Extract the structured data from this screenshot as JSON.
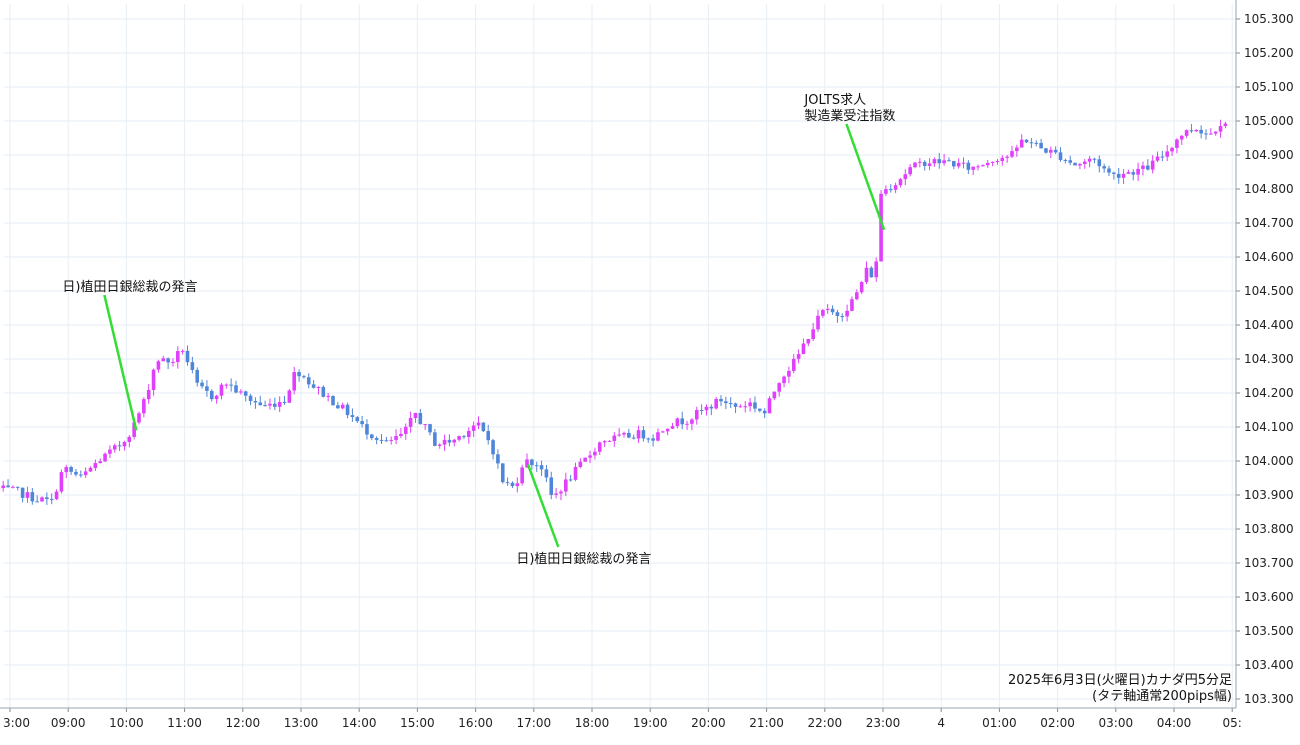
{
  "chart_data": {
    "type": "candlestick",
    "caption": [
      "2025年6月3日(火曜日)カナダ円5分足",
      "(タテ軸通常200pips幅)"
    ],
    "x_ticks": [
      "3:00",
      "09:00",
      "10:00",
      "11:00",
      "12:00",
      "13:00",
      "14:00",
      "15:00",
      "16:00",
      "17:00",
      "18:00",
      "19:00",
      "20:00",
      "21:00",
      "22:00",
      "23:00",
      "4",
      "01:00",
      "02:00",
      "03:00",
      "04:00",
      "05:"
    ],
    "y_ticks": [
      "105.300",
      "105.200",
      "105.100",
      "105.000",
      "104.900",
      "104.800",
      "104.700",
      "104.600",
      "104.500",
      "104.400",
      "104.300",
      "104.200",
      "104.100",
      "104.000",
      "103.900",
      "103.800",
      "103.700",
      "103.600",
      "103.500",
      "103.400",
      "103.300"
    ],
    "ylim": [
      103.28,
      105.34
    ],
    "grid": true,
    "colors": {
      "up": "#e040fb",
      "down": "#4f86d9",
      "annotation_line": "#33dd33",
      "grid": "#e6eef5"
    },
    "annotations": [
      {
        "lines": [
          "日)植田日銀総裁の発言"
        ],
        "hour": 10.17,
        "price": 104.09,
        "text_hour": 8.9,
        "text_price": 104.5
      },
      {
        "lines": [
          "日)植田日銀総裁の発言"
        ],
        "hour": 16.9,
        "price": 103.99,
        "text_hour": 16.7,
        "text_price": 103.7
      },
      {
        "lines": [
          "JOLTS求人",
          "製造業受注指数"
        ],
        "hour": 23.02,
        "price": 104.68,
        "text_hour": 21.65,
        "text_price": 105.05
      }
    ],
    "anchors": [
      [
        7.8,
        103.92
      ],
      [
        8.2,
        103.91
      ],
      [
        8.5,
        103.89
      ],
      [
        8.8,
        103.88
      ],
      [
        9.0,
        103.98
      ],
      [
        9.3,
        103.95
      ],
      [
        9.6,
        104.0
      ],
      [
        10.0,
        104.05
      ],
      [
        10.2,
        104.1
      ],
      [
        10.4,
        104.18
      ],
      [
        10.6,
        104.3
      ],
      [
        10.85,
        104.29
      ],
      [
        11.05,
        104.33
      ],
      [
        11.3,
        104.22
      ],
      [
        11.55,
        104.19
      ],
      [
        11.8,
        104.23
      ],
      [
        12.1,
        104.19
      ],
      [
        12.45,
        104.16
      ],
      [
        12.8,
        104.18
      ],
      [
        13.0,
        104.27
      ],
      [
        13.3,
        104.22
      ],
      [
        13.6,
        104.18
      ],
      [
        13.9,
        104.14
      ],
      [
        14.2,
        104.09
      ],
      [
        14.55,
        104.05
      ],
      [
        14.85,
        104.08
      ],
      [
        15.05,
        104.14
      ],
      [
        15.4,
        104.05
      ],
      [
        15.7,
        104.06
      ],
      [
        16.1,
        104.11
      ],
      [
        16.35,
        104.05
      ],
      [
        16.55,
        103.94
      ],
      [
        16.75,
        103.92
      ],
      [
        16.9,
        104.0
      ],
      [
        17.2,
        103.99
      ],
      [
        17.4,
        103.89
      ],
      [
        17.65,
        103.94
      ],
      [
        18.0,
        104.01
      ],
      [
        18.25,
        104.06
      ],
      [
        18.6,
        104.07
      ],
      [
        18.9,
        104.08
      ],
      [
        19.15,
        104.07
      ],
      [
        19.4,
        104.11
      ],
      [
        19.7,
        104.12
      ],
      [
        20.0,
        104.15
      ],
      [
        20.3,
        104.18
      ],
      [
        20.55,
        104.16
      ],
      [
        20.8,
        104.17
      ],
      [
        21.05,
        104.14
      ],
      [
        21.3,
        104.24
      ],
      [
        21.6,
        104.3
      ],
      [
        21.8,
        104.37
      ],
      [
        22.05,
        104.44
      ],
      [
        22.35,
        104.43
      ],
      [
        22.6,
        104.48
      ],
      [
        22.8,
        104.56
      ],
      [
        22.95,
        104.54
      ],
      [
        23.05,
        104.79
      ],
      [
        23.3,
        104.82
      ],
      [
        23.55,
        104.86
      ],
      [
        23.8,
        104.88
      ],
      [
        24.2,
        104.88
      ],
      [
        24.6,
        104.86
      ],
      [
        25.0,
        104.89
      ],
      [
        25.3,
        104.9
      ],
      [
        25.5,
        104.95
      ],
      [
        25.8,
        104.92
      ],
      [
        26.1,
        104.9
      ],
      [
        26.4,
        104.87
      ],
      [
        26.7,
        104.89
      ],
      [
        27.0,
        104.84
      ],
      [
        27.3,
        104.85
      ],
      [
        27.6,
        104.86
      ],
      [
        27.9,
        104.9
      ],
      [
        28.2,
        104.96
      ],
      [
        28.45,
        104.98
      ],
      [
        28.7,
        104.96
      ],
      [
        28.9,
        105.0
      ]
    ]
  }
}
